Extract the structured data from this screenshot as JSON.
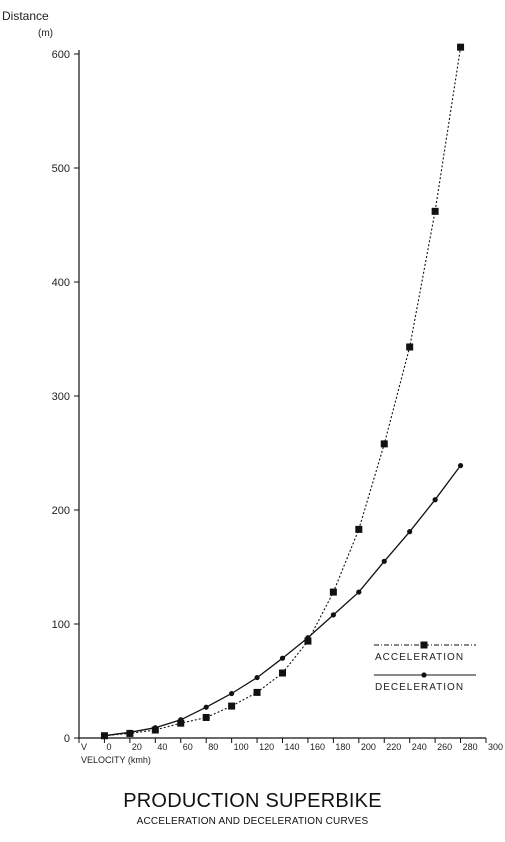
{
  "chart_data": {
    "type": "line",
    "title": "PRODUCTION SUPERBIKE",
    "subtitle": "ACCELERATION AND DECELERATION CURVES",
    "ylabel_line1": "Distance",
    "ylabel_line2": "(m)",
    "xlabel": "VELOCITY (kmh)",
    "xlim": [
      -20,
      300
    ],
    "ylim": [
      0,
      600
    ],
    "x_ticks": [
      -20,
      0,
      20,
      40,
      60,
      80,
      100,
      120,
      140,
      160,
      180,
      200,
      220,
      240,
      260,
      280,
      300
    ],
    "x_tick_labels": [
      "V",
      "0",
      "20",
      "40",
      "60",
      "80",
      "100",
      "120",
      "140",
      "160",
      "180",
      "200",
      "220",
      "240",
      "260",
      "280",
      "300"
    ],
    "y_ticks": [
      0,
      100,
      200,
      300,
      400,
      500,
      600
    ],
    "grid": false,
    "legend_position": "bottom-right",
    "series": [
      {
        "name": "ACCELERATION",
        "marker": "square",
        "line_style": "dotted",
        "x": [
          0,
          20,
          40,
          60,
          80,
          100,
          120,
          140,
          160,
          180,
          200,
          220,
          240,
          260,
          280
        ],
        "y": [
          2,
          4,
          7,
          13,
          18,
          28,
          40,
          57,
          85,
          128,
          183,
          258,
          343,
          462,
          606
        ]
      },
      {
        "name": "DECELERATION",
        "marker": "circle",
        "line_style": "solid",
        "x": [
          0,
          20,
          40,
          60,
          80,
          100,
          120,
          140,
          160,
          180,
          200,
          220,
          240,
          260,
          280
        ],
        "y": [
          2,
          5,
          9,
          16,
          27,
          39,
          53,
          70,
          88,
          108,
          128,
          155,
          181,
          209,
          239
        ]
      }
    ]
  }
}
